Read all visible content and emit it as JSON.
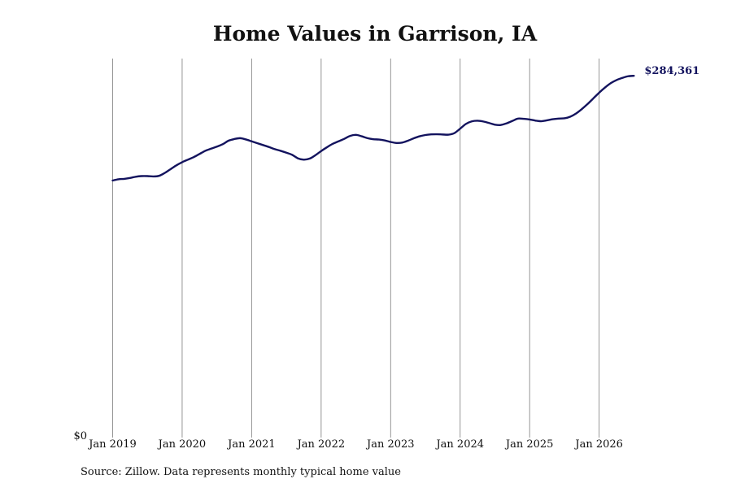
{
  "chart_data": {
    "type": "line",
    "title": "Home Values in Garrison, IA",
    "xlabel": "",
    "ylabel": "",
    "x_tick_labels": [
      "Jan 2019",
      "Jan 2020",
      "Jan 2021",
      "Jan 2022",
      "Jan 2023",
      "Jan 2024",
      "Jan 2025",
      "Jan 2026"
    ],
    "y_tick_labels": [
      "$0"
    ],
    "ylim": [
      0,
      298000
    ],
    "grid": "vertical",
    "line_color": "#13135e",
    "end_label": "$284,361",
    "series": [
      {
        "x": [
          "2019-01",
          "2019-02",
          "2019-03",
          "2019-04",
          "2019-05",
          "2019-06",
          "2019-07",
          "2019-08",
          "2019-09",
          "2019-10",
          "2019-11",
          "2019-12",
          "2020-01",
          "2020-02",
          "2020-03",
          "2020-04",
          "2020-05",
          "2020-06",
          "2020-07",
          "2020-08",
          "2020-09",
          "2020-10",
          "2020-11",
          "2020-12",
          "2021-01",
          "2021-02",
          "2021-03",
          "2021-04",
          "2021-05",
          "2021-06",
          "2021-07",
          "2021-08",
          "2021-09",
          "2021-10",
          "2021-11",
          "2021-12",
          "2022-01",
          "2022-02",
          "2022-03",
          "2022-04",
          "2022-05",
          "2022-06",
          "2022-07",
          "2022-08",
          "2022-09",
          "2022-10",
          "2022-11",
          "2022-12",
          "2023-01",
          "2023-02",
          "2023-03",
          "2023-04",
          "2023-05",
          "2023-06",
          "2023-07",
          "2023-08",
          "2023-09",
          "2023-10",
          "2023-11",
          "2023-12",
          "2024-01",
          "2024-02",
          "2024-03",
          "2024-04",
          "2024-05",
          "2024-06",
          "2024-07",
          "2024-08",
          "2024-09",
          "2024-10",
          "2024-11",
          "2024-12",
          "2025-01",
          "2025-02",
          "2025-03",
          "2025-04",
          "2025-05",
          "2025-06",
          "2025-07",
          "2025-08",
          "2025-09",
          "2025-10",
          "2025-11",
          "2025-12",
          "2026-01",
          "2026-02",
          "2026-03",
          "2026-04",
          "2026-05",
          "2026-06",
          "2026-07"
        ],
        "values": [
          201500,
          202500,
          202800,
          203500,
          204500,
          205000,
          205000,
          204700,
          205200,
          207500,
          210500,
          213500,
          216000,
          218000,
          220000,
          222500,
          225000,
          226700,
          228300,
          230200,
          233000,
          234300,
          235000,
          234000,
          232500,
          231000,
          229500,
          228000,
          226300,
          225000,
          223500,
          221800,
          219000,
          218000,
          218800,
          221500,
          224800,
          227800,
          230500,
          232500,
          234500,
          236800,
          237600,
          236500,
          235000,
          234200,
          233900,
          233200,
          232000,
          231200,
          231500,
          233000,
          234900,
          236500,
          237500,
          238000,
          238100,
          237900,
          237800,
          239000,
          242500,
          246300,
          248300,
          248800,
          248200,
          247000,
          245700,
          245400,
          246700,
          248600,
          250500,
          250300,
          249800,
          248900,
          248400,
          249100,
          250000,
          250500,
          250700,
          252000,
          254500,
          258000,
          262000,
          266500,
          271000,
          275000,
          278500,
          281000,
          282700,
          284000,
          284361
        ]
      }
    ]
  },
  "source_note": "Source: Zillow. Data represents monthly typical home value"
}
